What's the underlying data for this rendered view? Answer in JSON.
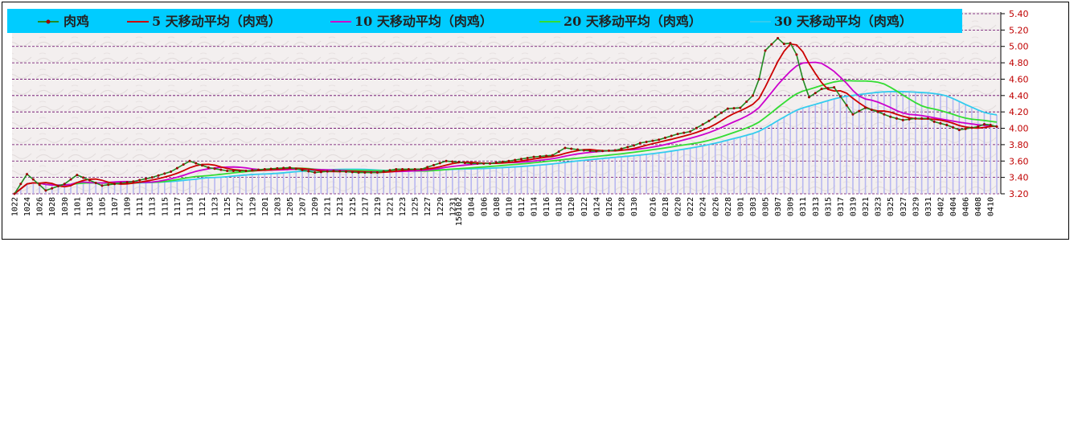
{
  "chart_data": {
    "type": "line",
    "title": "",
    "xlabel": "",
    "ylabel": "",
    "ylim": [
      3.2,
      5.4
    ],
    "yticks": [
      "5.40",
      "5.20",
      "5.00",
      "4.80",
      "4.60",
      "4.40",
      "4.20",
      "4.00",
      "3.80",
      "3.60",
      "3.40",
      "3.20"
    ],
    "grid": true,
    "legend_position": "top",
    "colors": {
      "legend_bg": "#00ccff",
      "grid": "#660066",
      "ytick": "#c00000",
      "bars": "#b8b8f0",
      "price_line": "#228b22",
      "price_marker": "#a00000"
    },
    "x": [
      "1022",
      "1023",
      "1024",
      "1025",
      "1026",
      "1027",
      "1028",
      "1029",
      "1030",
      "1031",
      "1101",
      "1102",
      "1103",
      "1104",
      "1105",
      "1106",
      "1107",
      "1108",
      "1109",
      "1110",
      "1111",
      "1112",
      "1113",
      "1114",
      "1115",
      "1116",
      "1117",
      "1118",
      "1119",
      "1120",
      "1121",
      "1122",
      "1123",
      "1124",
      "1125",
      "1126",
      "1127",
      "1128",
      "1129",
      "1130",
      "1201",
      "1202",
      "1203",
      "1204",
      "1205",
      "1206",
      "1207",
      "1208",
      "1209",
      "1210",
      "1211",
      "1212",
      "1213",
      "1214",
      "1215",
      "1216",
      "1217",
      "1218",
      "1219",
      "1220",
      "1221",
      "1222",
      "1223",
      "1224",
      "1225",
      "1226",
      "1227",
      "1228",
      "1229",
      "1230",
      "1231",
      "150102",
      "0103",
      "0104",
      "0105",
      "0106",
      "0107",
      "0108",
      "0109",
      "0110",
      "0111",
      "0112",
      "0113",
      "0114",
      "0115",
      "0116",
      "0117",
      "0118",
      "0119",
      "0120",
      "0121",
      "0122",
      "0123",
      "0124",
      "0125",
      "0126",
      "0127",
      "0128",
      "0129",
      "0130",
      "0131",
      "0201",
      "0216",
      "0217",
      "0218",
      "0219",
      "0220",
      "0221",
      "0222",
      "0223",
      "0224",
      "0225",
      "0226",
      "0227",
      "0228",
      "0229",
      "0301",
      "0302",
      "0303",
      "0304",
      "0305",
      "0306",
      "0307",
      "0308",
      "0309",
      "0310",
      "0311",
      "0312",
      "0313",
      "0314",
      "0315",
      "0316",
      "0317",
      "0318",
      "0319",
      "0320",
      "0321",
      "0322",
      "0323",
      "0324",
      "0325",
      "0326",
      "0327",
      "0328",
      "0329",
      "0330",
      "0331",
      "0401",
      "0402",
      "0403",
      "0404",
      "0405",
      "0406",
      "0407",
      "0408",
      "0409",
      "0410",
      "0411"
    ],
    "xtick_labels": [
      "1022",
      "1024",
      "1026",
      "1028",
      "1030",
      "1101",
      "1103",
      "1105",
      "1107",
      "1109",
      "1111",
      "1113",
      "1115",
      "1117",
      "1119",
      "1121",
      "1123",
      "1125",
      "1127",
      "1129",
      "1201",
      "1203",
      "1205",
      "1207",
      "1209",
      "1211",
      "1213",
      "1215",
      "1217",
      "1219",
      "1221",
      "1223",
      "1225",
      "1227",
      "1229",
      "1231",
      "150102",
      "0104",
      "0106",
      "0108",
      "0110",
      "0112",
      "0114",
      "0116",
      "0118",
      "0120",
      "0122",
      "0124",
      "0126",
      "0128",
      "0130",
      "0216",
      "0218",
      "0220",
      "0222",
      "0224",
      "0226",
      "0228",
      "0301",
      "0303",
      "0305",
      "0307",
      "0309",
      "0311",
      "0313",
      "0315",
      "0317",
      "0319",
      "0321",
      "0323",
      "0325",
      "0327",
      "0329",
      "0331",
      "0402",
      "0404",
      "0406",
      "0408",
      "0410"
    ],
    "anchors": [
      {
        "x": "1022",
        "v": 3.2
      },
      {
        "x": "1024",
        "v": 3.44
      },
      {
        "x": "1026",
        "v": 3.31
      },
      {
        "x": "1027",
        "v": 3.24
      },
      {
        "x": "1030",
        "v": 3.32
      },
      {
        "x": "1101",
        "v": 3.43
      },
      {
        "x": "1105",
        "v": 3.3
      },
      {
        "x": "1110",
        "v": 3.35
      },
      {
        "x": "1113",
        "v": 3.4
      },
      {
        "x": "1116",
        "v": 3.47
      },
      {
        "x": "1119",
        "v": 3.6
      },
      {
        "x": "1122",
        "v": 3.52
      },
      {
        "x": "1125",
        "v": 3.48
      },
      {
        "x": "1128",
        "v": 3.48
      },
      {
        "x": "1201",
        "v": 3.5
      },
      {
        "x": "1205",
        "v": 3.52
      },
      {
        "x": "1209",
        "v": 3.46
      },
      {
        "x": "1212",
        "v": 3.48
      },
      {
        "x": "1216",
        "v": 3.46
      },
      {
        "x": "1219",
        "v": 3.46
      },
      {
        "x": "1222",
        "v": 3.5
      },
      {
        "x": "1226",
        "v": 3.5
      },
      {
        "x": "1230",
        "v": 3.6
      },
      {
        "x": "0104",
        "v": 3.57
      },
      {
        "x": "0107",
        "v": 3.57
      },
      {
        "x": "0110",
        "v": 3.6
      },
      {
        "x": "0114",
        "v": 3.65
      },
      {
        "x": "0117",
        "v": 3.67
      },
      {
        "x": "0119",
        "v": 3.76
      },
      {
        "x": "0122",
        "v": 3.73
      },
      {
        "x": "0124",
        "v": 3.72
      },
      {
        "x": "0127",
        "v": 3.73
      },
      {
        "x": "0130",
        "v": 3.79
      },
      {
        "x": "0131",
        "v": 3.82
      },
      {
        "x": "0217",
        "v": 3.86
      },
      {
        "x": "0220",
        "v": 3.93
      },
      {
        "x": "0222",
        "v": 3.96
      },
      {
        "x": "0225",
        "v": 4.09
      },
      {
        "x": "0228",
        "v": 4.24
      },
      {
        "x": "0301",
        "v": 4.25
      },
      {
        "x": "0303",
        "v": 4.4
      },
      {
        "x": "0304",
        "v": 4.6
      },
      {
        "x": "0305",
        "v": 4.95
      },
      {
        "x": "0307",
        "v": 5.1
      },
      {
        "x": "0308",
        "v": 5.03
      },
      {
        "x": "0309",
        "v": 5.04
      },
      {
        "x": "0310",
        "v": 4.9
      },
      {
        "x": "0311",
        "v": 4.6
      },
      {
        "x": "0312",
        "v": 4.38
      },
      {
        "x": "0314",
        "v": 4.48
      },
      {
        "x": "0316",
        "v": 4.5
      },
      {
        "x": "0319",
        "v": 4.17
      },
      {
        "x": "0321",
        "v": 4.25
      },
      {
        "x": "0323",
        "v": 4.2
      },
      {
        "x": "0325",
        "v": 4.14
      },
      {
        "x": "0327",
        "v": 4.1
      },
      {
        "x": "0329",
        "v": 4.12
      },
      {
        "x": "0331",
        "v": 4.12
      },
      {
        "x": "0401",
        "v": 4.08
      },
      {
        "x": "0403",
        "v": 4.04
      },
      {
        "x": "0405",
        "v": 3.98
      },
      {
        "x": "0408",
        "v": 4.02
      },
      {
        "x": "0409",
        "v": 4.05
      },
      {
        "x": "0410",
        "v": 4.04
      },
      {
        "x": "0411",
        "v": 4.02
      }
    ],
    "series": [
      {
        "name": "肉鸡",
        "color": "#228b22",
        "marker": true
      },
      {
        "name": "5 天移动平均（肉鸡）",
        "color": "#cc0000",
        "window": 5
      },
      {
        "name": "10 天移动平均（肉鸡）",
        "color": "#cc00cc",
        "window": 10
      },
      {
        "name": "20 天移动平均（肉鸡）",
        "color": "#33dd33",
        "window": 20
      },
      {
        "name": "30 天移动平均（肉鸡）",
        "color": "#33ccee",
        "window": 30
      }
    ]
  }
}
